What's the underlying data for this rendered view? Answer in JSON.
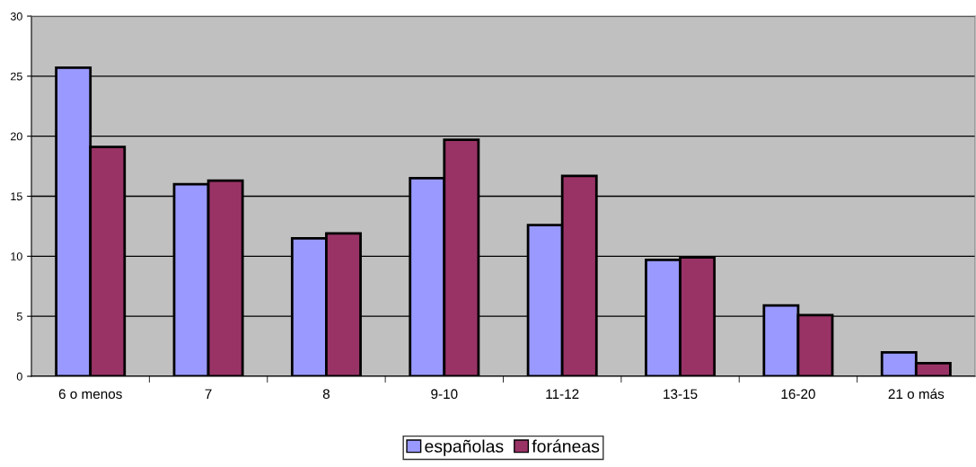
{
  "chart_data": {
    "type": "bar",
    "categories": [
      "6 o menos",
      "7",
      "8",
      "9-10",
      "11-12",
      "13-15",
      "16-20",
      "21 o más"
    ],
    "series": [
      {
        "name": "españolas",
        "color": "#9999ff",
        "values": [
          25.7,
          16.0,
          11.5,
          16.5,
          12.6,
          9.7,
          5.9,
          2.0
        ]
      },
      {
        "name": "foráneas",
        "color": "#993366",
        "values": [
          19.1,
          16.3,
          11.9,
          19.7,
          16.7,
          9.9,
          5.1,
          1.1
        ]
      }
    ],
    "ylim": [
      0,
      30
    ],
    "yticks": [
      0,
      5,
      10,
      15,
      20,
      25,
      30
    ],
    "grid": "y",
    "legend": "bottom"
  }
}
